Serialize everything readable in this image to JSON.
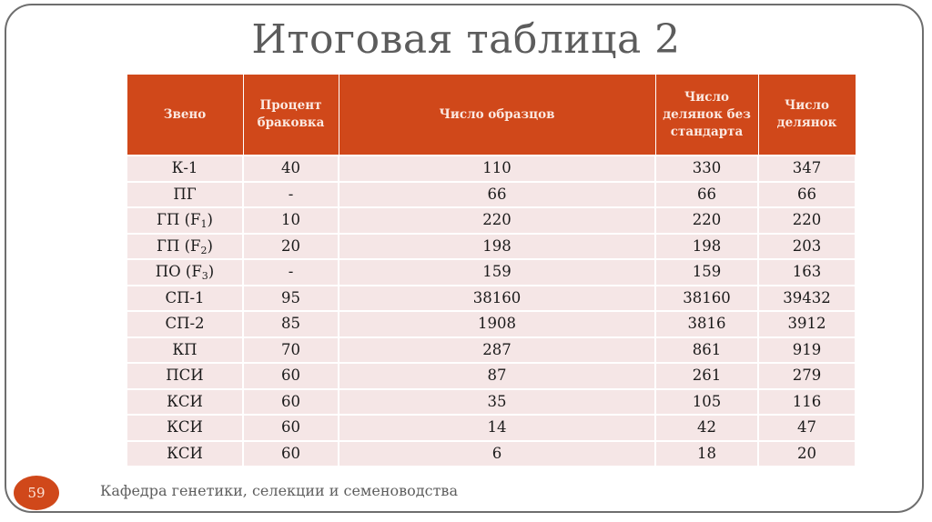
{
  "slide": {
    "title": "Итоговая таблица 2",
    "page_number": "59",
    "footer": "Кафедра генетики, селекции и семеноводства"
  },
  "colors": {
    "accent": "#d0481a",
    "header_text": "#fbe9e1",
    "row_bg": "#f5e6e6",
    "title": "#5c5c5c",
    "frame": "#6e6e6e"
  },
  "table": {
    "headers": [
      "Звено",
      "Процент браковка",
      "Число образцов",
      "Число делянок без стандарта",
      "Число делянок"
    ],
    "rows": [
      {
        "link": "К-1",
        "link_sub": "",
        "link_tail": "",
        "percent": "40",
        "samples": "110",
        "plots_no_std": "330",
        "plots": "347"
      },
      {
        "link": "ПГ",
        "link_sub": "",
        "link_tail": "",
        "percent": "-",
        "samples": "66",
        "plots_no_std": "66",
        "plots": "66"
      },
      {
        "link": "ГП (F",
        "link_sub": "1",
        "link_tail": ")",
        "percent": "10",
        "samples": "220",
        "plots_no_std": "220",
        "plots": "220"
      },
      {
        "link": "ГП (F",
        "link_sub": "2",
        "link_tail": ")",
        "percent": "20",
        "samples": "198",
        "plots_no_std": "198",
        "plots": "203"
      },
      {
        "link": "ПО (F",
        "link_sub": "3",
        "link_tail": ")",
        "percent": "-",
        "samples": "159",
        "plots_no_std": "159",
        "plots": "163"
      },
      {
        "link": "СП-1",
        "link_sub": "",
        "link_tail": "",
        "percent": "95",
        "samples": "38160",
        "plots_no_std": "38160",
        "plots": "39432"
      },
      {
        "link": "СП-2",
        "link_sub": "",
        "link_tail": "",
        "percent": "85",
        "samples": "1908",
        "plots_no_std": "3816",
        "plots": "3912"
      },
      {
        "link": "КП",
        "link_sub": "",
        "link_tail": "",
        "percent": "70",
        "samples": "287",
        "plots_no_std": "861",
        "plots": "919"
      },
      {
        "link": "ПСИ",
        "link_sub": "",
        "link_tail": "",
        "percent": "60",
        "samples": "87",
        "plots_no_std": "261",
        "plots": "279"
      },
      {
        "link": "КСИ",
        "link_sub": "",
        "link_tail": "",
        "percent": "60",
        "samples": "35",
        "plots_no_std": "105",
        "plots": "116"
      },
      {
        "link": "КСИ",
        "link_sub": "",
        "link_tail": "",
        "percent": "60",
        "samples": "14",
        "plots_no_std": "42",
        "plots": "47"
      },
      {
        "link": "КСИ",
        "link_sub": "",
        "link_tail": "",
        "percent": "60",
        "samples": "6",
        "plots_no_std": "18",
        "plots": "20"
      }
    ]
  }
}
